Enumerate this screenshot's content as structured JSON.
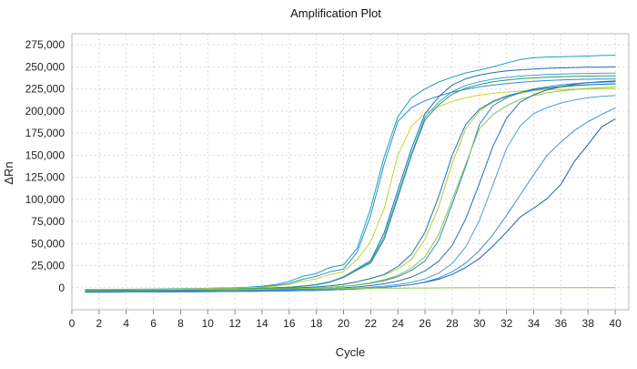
{
  "chart_data": {
    "type": "line",
    "title": "Amplification Plot",
    "xlabel": "Cycle",
    "ylabel": "ΔRn",
    "xlim": [
      0,
      41
    ],
    "ylim": [
      -25000,
      287500
    ],
    "x_ticks": [
      0,
      2,
      4,
      6,
      8,
      10,
      12,
      14,
      16,
      18,
      20,
      22,
      24,
      26,
      28,
      30,
      32,
      34,
      36,
      38,
      40
    ],
    "x_tick_labels": [
      "0",
      "2",
      "4",
      "6",
      "8",
      "10",
      "12",
      "14",
      "16",
      "18",
      "20",
      "22",
      "24",
      "26",
      "28",
      "30",
      "32",
      "34",
      "36",
      "38",
      "40"
    ],
    "y_ticks": [
      0,
      25000,
      50000,
      75000,
      100000,
      125000,
      150000,
      175000,
      200000,
      225000,
      250000,
      275000
    ],
    "y_tick_labels": [
      "0",
      "25,000",
      "50,000",
      "75,000",
      "100,000",
      "125,000",
      "150,000",
      "175,000",
      "200,000",
      "225,000",
      "250,000",
      "275,000"
    ],
    "grid": true,
    "legend": "none",
    "x": [
      1,
      2,
      3,
      4,
      5,
      6,
      7,
      8,
      9,
      10,
      11,
      12,
      13,
      14,
      15,
      16,
      17,
      18,
      19,
      20,
      21,
      22,
      23,
      24,
      25,
      26,
      27,
      28,
      29,
      30,
      31,
      32,
      33,
      34,
      35,
      36,
      37,
      38,
      39,
      40
    ],
    "series": [
      {
        "color": "#1aa3b8",
        "values": [
          -2000,
          -2000,
          -1900,
          -1800,
          -1700,
          -1600,
          -1400,
          -1200,
          -1000,
          -700,
          -400,
          0,
          600,
          1700,
          3600,
          7200,
          13000,
          16000,
          23000,
          26000,
          44700,
          90200,
          148500,
          193400,
          215000,
          225000,
          232800,
          238300,
          243200,
          246300,
          250000,
          254300,
          258200,
          260300,
          261100,
          261500,
          261800,
          262200,
          262800,
          263200
        ]
      },
      {
        "color": "#2c8fd1",
        "values": [
          -2500,
          -2500,
          -2400,
          -2300,
          -2200,
          -2000,
          -1800,
          -1500,
          -1200,
          -900,
          -600,
          -300,
          200,
          1000,
          2400,
          5000,
          9500,
          13000,
          18000,
          21000,
          40300,
          82000,
          140500,
          188200,
          204000,
          211600,
          217000,
          221400,
          224600,
          227300,
          229300,
          231000,
          232400,
          233600,
          234500,
          235200,
          235700,
          236000,
          236200,
          236300
        ]
      },
      {
        "color": "#c8d42c",
        "values": [
          -2500,
          -2500,
          -2400,
          -2300,
          -2200,
          -2100,
          -1900,
          -1700,
          -1400,
          -1100,
          -800,
          -500,
          0,
          600,
          1700,
          3800,
          7500,
          10000,
          15000,
          18000,
          32000,
          52000,
          90000,
          150000,
          183000,
          197000,
          205000,
          211000,
          215000,
          218000,
          220000,
          221500,
          222600,
          223400,
          224000,
          224400,
          224700,
          224900,
          225000,
          225100
        ]
      },
      {
        "color": "#1f6fb5",
        "values": [
          -3000,
          -3000,
          -2900,
          -2800,
          -2700,
          -2600,
          -2500,
          -2300,
          -2100,
          -1900,
          -1600,
          -1300,
          -1000,
          -600,
          -100,
          600,
          1800,
          3600,
          6800,
          12200,
          21500,
          30700,
          62500,
          110500,
          157500,
          197000,
          216000,
          229400,
          236500,
          240700,
          243500,
          245500,
          246700,
          247600,
          248300,
          248800,
          249200,
          249500,
          249700,
          249900
        ]
      },
      {
        "color": "#3a9ee6",
        "values": [
          -3000,
          -3000,
          -2900,
          -2800,
          -2700,
          -2600,
          -2500,
          -2300,
          -2100,
          -1900,
          -1600,
          -1300,
          -1000,
          -600,
          -100,
          600,
          1800,
          3600,
          6800,
          12000,
          21000,
          29000,
          58000,
          105000,
          152000,
          193000,
          210000,
          222000,
          229000,
          233000,
          236000,
          238000,
          239500,
          240500,
          241300,
          241800,
          242200,
          242500,
          242700,
          242900
        ]
      },
      {
        "color": "#2a9a62",
        "values": [
          -3000,
          -3000,
          -2900,
          -2800,
          -2700,
          -2600,
          -2500,
          -2300,
          -2100,
          -1900,
          -1600,
          -1300,
          -1000,
          -600,
          -100,
          500,
          1600,
          3300,
          6300,
          11500,
          20000,
          28000,
          55000,
          102000,
          150000,
          190000,
          207000,
          219000,
          226000,
          230000,
          233000,
          235000,
          236500,
          237500,
          238300,
          238800,
          239200,
          239500,
          239700,
          239900
        ]
      },
      {
        "color": "#b5cf3a",
        "values": [
          -3500,
          -3500,
          -3400,
          -3300,
          -3200,
          -3100,
          -3000,
          -2900,
          -2700,
          -2500,
          -2300,
          -2000,
          -1700,
          -1400,
          -1000,
          -500,
          100,
          900,
          2100,
          3800,
          6800,
          10500,
          14500,
          21300,
          32000,
          55000,
          91500,
          140800,
          180000,
          200000,
          210000,
          216000,
          220000,
          223000,
          225000,
          227000,
          228500,
          229500,
          230200,
          230700
        ]
      },
      {
        "color": "#1f73b7",
        "values": [
          -3500,
          -3500,
          -3400,
          -3300,
          -3200,
          -3100,
          -3000,
          -2900,
          -2700,
          -2500,
          -2300,
          -2000,
          -1700,
          -1400,
          -1000,
          -500,
          100,
          900,
          2100,
          3800,
          6800,
          10500,
          15000,
          24000,
          38000,
          63000,
          103000,
          150000,
          185000,
          202000,
          211000,
          217000,
          221000,
          224000,
          226000,
          227600,
          228800,
          229700,
          230300,
          230800
        ]
      },
      {
        "color": "#2e86c9",
        "values": [
          -4000,
          -4000,
          -3900,
          -3800,
          -3700,
          -3600,
          -3500,
          -3400,
          -3300,
          -3100,
          -2900,
          -2700,
          -2500,
          -2200,
          -1900,
          -1500,
          -1000,
          -400,
          400,
          1500,
          3000,
          5100,
          8000,
          12500,
          19600,
          30600,
          53400,
          94800,
          137400,
          184700,
          206000,
          215000,
          221000,
          225000,
          227500,
          229500,
          231000,
          232000,
          232600,
          233000
        ]
      },
      {
        "color": "#7ec94a",
        "values": [
          -4000,
          -4000,
          -3900,
          -3800,
          -3700,
          -3600,
          -3500,
          -3400,
          -3300,
          -3100,
          -2900,
          -2700,
          -2500,
          -2200,
          -1900,
          -1500,
          -1000,
          -400,
          400,
          1600,
          3300,
          5700,
          9000,
          14000,
          22000,
          35000,
          60000,
          100000,
          140000,
          180000,
          196000,
          206000,
          213000,
          217500,
          220500,
          222800,
          224400,
          225600,
          226500,
          227100
        ]
      },
      {
        "color": "#2b6fae",
        "values": [
          -4500,
          -4500,
          -4400,
          -4300,
          -4200,
          -4100,
          -4000,
          -3900,
          -3800,
          -3700,
          -3600,
          -3400,
          -3200,
          -3000,
          -2700,
          -2400,
          -2000,
          -1500,
          -900,
          -100,
          900,
          2400,
          4500,
          7500,
          12000,
          19000,
          30000,
          48000,
          78000,
          118000,
          160000,
          192000,
          210000,
          218500,
          224000,
          227600,
          230200,
          232000,
          233200,
          234000
        ]
      },
      {
        "color": "#4a9fd8",
        "values": [
          -5000,
          -5000,
          -4900,
          -4800,
          -4700,
          -4600,
          -4500,
          -4400,
          -4300,
          -4200,
          -4100,
          -4000,
          -3800,
          -3600,
          -3400,
          -3100,
          -2800,
          -2400,
          -1900,
          -1300,
          -500,
          500,
          1800,
          3500,
          6000,
          10000,
          16500,
          27500,
          46500,
          76000,
          116500,
          158000,
          183000,
          197000,
          204000,
          209000,
          212500,
          215000,
          216500,
          217500
        ]
      },
      {
        "color": "#1a5fa8",
        "values": [
          -5000,
          -5000,
          -5000,
          -4900,
          -4900,
          -4800,
          -4800,
          -4700,
          -4600,
          -4500,
          -4400,
          -4300,
          -4200,
          -4000,
          -3800,
          -3600,
          -3300,
          -3000,
          -2600,
          -2100,
          -1400,
          -600,
          400,
          1800,
          3500,
          6000,
          9500,
          15000,
          23000,
          33000,
          47000,
          63000,
          80000,
          90000,
          101000,
          117000,
          143000,
          162000,
          182000,
          191000
        ]
      },
      {
        "color": "#3e8fd6",
        "values": [
          -5000,
          -5000,
          -5000,
          -4900,
          -4900,
          -4800,
          -4800,
          -4700,
          -4600,
          -4500,
          -4400,
          -4300,
          -4200,
          -4000,
          -3800,
          -3600,
          -3300,
          -3000,
          -2600,
          -2100,
          -1400,
          -600,
          400,
          1800,
          3500,
          6500,
          11000,
          18000,
          28000,
          42000,
          60000,
          82000,
          105000,
          128000,
          150000,
          165000,
          178000,
          188000,
          196000,
          203500
        ]
      },
      {
        "color": "#8cc84b",
        "values": [
          -2000,
          -2000,
          -2000,
          -2000,
          -2000,
          -1900,
          -1900,
          -1900,
          -1800,
          -1800,
          -1700,
          -1700,
          -1600,
          -1500,
          -1400,
          -1300,
          -1200,
          -1100,
          -1000,
          -900,
          -800,
          -700,
          -600,
          -500,
          -400,
          -300,
          -200,
          -150,
          -100,
          -50,
          0,
          0,
          0,
          0,
          0,
          0,
          0,
          0,
          0,
          0
        ]
      }
    ]
  }
}
